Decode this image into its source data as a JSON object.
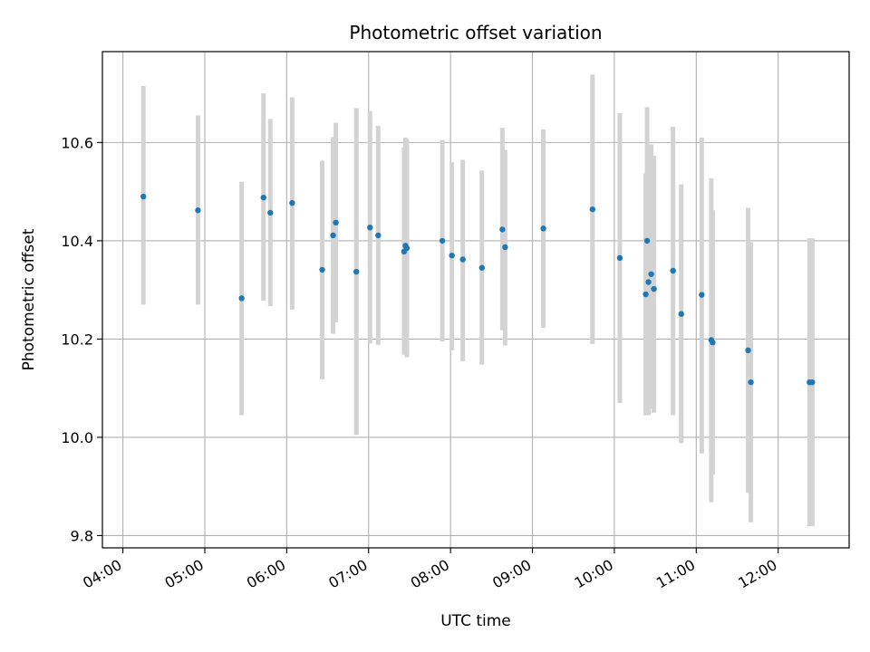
{
  "chart_data": {
    "type": "scatter",
    "title": "Photometric offset variation",
    "xlabel": "UTC time",
    "ylabel": "Photometric offset",
    "x_is_time": true,
    "xlim": [
      "03:45",
      "12:52"
    ],
    "ylim": [
      9.775,
      10.785
    ],
    "x_ticks": [
      "04:00",
      "05:00",
      "06:00",
      "07:00",
      "08:00",
      "09:00",
      "10:00",
      "11:00",
      "12:00"
    ],
    "y_ticks": [
      9.8,
      10.0,
      10.2,
      10.4,
      10.6
    ],
    "y_tick_labels": [
      "9.8",
      "10.0",
      "10.2",
      "10.4",
      "10.6"
    ],
    "grid": true,
    "colors": {
      "point": "#1f77b4",
      "error_bar": "#d3d3d3",
      "grid": "#b0b0b0",
      "axis": "#000000"
    },
    "series": [
      {
        "points": [
          {
            "t": "04:15",
            "y": 10.49,
            "lo": 10.27,
            "hi": 10.715
          },
          {
            "t": "04:55",
            "y": 10.462,
            "lo": 10.27,
            "hi": 10.655
          },
          {
            "t": "05:27",
            "y": 10.283,
            "lo": 10.045,
            "hi": 10.52
          },
          {
            "t": "05:43",
            "y": 10.488,
            "lo": 10.278,
            "hi": 10.7
          },
          {
            "t": "05:48",
            "y": 10.457,
            "lo": 10.267,
            "hi": 10.648
          },
          {
            "t": "06:04",
            "y": 10.477,
            "lo": 10.26,
            "hi": 10.692
          },
          {
            "t": "06:26",
            "y": 10.341,
            "lo": 10.118,
            "hi": 10.563
          },
          {
            "t": "06:34",
            "y": 10.411,
            "lo": 10.211,
            "hi": 10.611
          },
          {
            "t": "06:36",
            "y": 10.437,
            "lo": 10.234,
            "hi": 10.64
          },
          {
            "t": "06:51",
            "y": 10.337,
            "lo": 10.005,
            "hi": 10.67
          },
          {
            "t": "07:01",
            "y": 10.427,
            "lo": 10.191,
            "hi": 10.664
          },
          {
            "t": "07:07",
            "y": 10.411,
            "lo": 10.188,
            "hi": 10.634
          },
          {
            "t": "07:26",
            "y": 10.378,
            "lo": 10.168,
            "hi": 10.59
          },
          {
            "t": "07:27",
            "y": 10.39,
            "lo": 10.17,
            "hi": 10.61
          },
          {
            "t": "07:28",
            "y": 10.385,
            "lo": 10.163,
            "hi": 10.607
          },
          {
            "t": "07:54",
            "y": 10.4,
            "lo": 10.195,
            "hi": 10.605
          },
          {
            "t": "08:01",
            "y": 10.37,
            "lo": 10.177,
            "hi": 10.56
          },
          {
            "t": "08:09",
            "y": 10.362,
            "lo": 10.155,
            "hi": 10.565
          },
          {
            "t": "08:23",
            "y": 10.345,
            "lo": 10.148,
            "hi": 10.543
          },
          {
            "t": "08:38",
            "y": 10.423,
            "lo": 10.218,
            "hi": 10.63
          },
          {
            "t": "08:40",
            "y": 10.387,
            "lo": 10.187,
            "hi": 10.585
          },
          {
            "t": "09:08",
            "y": 10.425,
            "lo": 10.223,
            "hi": 10.627
          },
          {
            "t": "09:44",
            "y": 10.464,
            "lo": 10.19,
            "hi": 10.738
          },
          {
            "t": "10:04",
            "y": 10.365,
            "lo": 10.07,
            "hi": 10.66
          },
          {
            "t": "10:23",
            "y": 10.291,
            "lo": 10.045,
            "hi": 10.537
          },
          {
            "t": "10:24",
            "y": 10.4,
            "lo": 10.128,
            "hi": 10.672
          },
          {
            "t": "10:25",
            "y": 10.316,
            "lo": 10.045,
            "hi": 10.587
          },
          {
            "t": "10:27",
            "y": 10.332,
            "lo": 10.058,
            "hi": 10.596
          },
          {
            "t": "10:29",
            "y": 10.302,
            "lo": 10.05,
            "hi": 10.573
          },
          {
            "t": "10:43",
            "y": 10.339,
            "lo": 10.045,
            "hi": 10.632
          },
          {
            "t": "10:49",
            "y": 10.251,
            "lo": 9.988,
            "hi": 10.515
          },
          {
            "t": "11:04",
            "y": 10.29,
            "lo": 9.967,
            "hi": 10.61
          },
          {
            "t": "11:11",
            "y": 10.198,
            "lo": 9.868,
            "hi": 10.527
          },
          {
            "t": "11:12",
            "y": 10.193,
            "lo": 9.924,
            "hi": 10.462
          },
          {
            "t": "11:38",
            "y": 10.177,
            "lo": 9.887,
            "hi": 10.467
          },
          {
            "t": "11:40",
            "y": 10.112,
            "lo": 9.827,
            "hi": 10.397
          },
          {
            "t": "12:23",
            "y": 10.112,
            "lo": 9.819,
            "hi": 10.405
          },
          {
            "t": "12:25",
            "y": 10.112,
            "lo": 9.819,
            "hi": 10.405
          }
        ]
      }
    ]
  }
}
